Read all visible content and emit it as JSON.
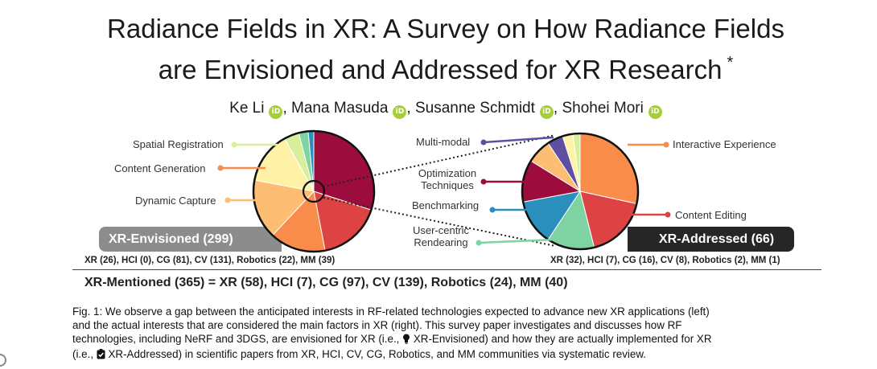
{
  "title": {
    "line1": "Radiance Fields in XR: A Survey on How Radiance Fields",
    "line2": "are Envisioned and Addressed for XR Research",
    "mark": "*"
  },
  "authors": [
    {
      "name": "Ke Li",
      "sep": ", "
    },
    {
      "name": "Mana Masuda",
      "sep": ", "
    },
    {
      "name": "Susanne Schmidt",
      "sep": ", "
    },
    {
      "name": "Shohei Mori",
      "sep": ""
    }
  ],
  "orcid_glyph": "iD",
  "figure": {
    "left_labels": {
      "spatial_registration": "Spatial Registration",
      "content_generation": "Content Generation",
      "dynamic_capture": "Dynamic Capture"
    },
    "center_labels": {
      "multi_modal": "Multi-modal",
      "optimization_1": "Optimization",
      "optimization_2": "Techniques",
      "benchmarking": "Benchmarking",
      "user_centric_1": "User-centric",
      "user_centric_2": "Rendearing"
    },
    "right_labels": {
      "interactive_experience": "Interactive Experience",
      "content_editing": "Content Editing"
    },
    "envisioned_banner": "XR-Envisioned (299)",
    "addressed_banner": "XR-Addressed (66)",
    "envisioned_stats": "XR (26), HCI (0), CG (81), CV (131), Robotics (22), MM (39)",
    "addressed_stats": "XR (32), HCI (7), CG (16), CV (8), Robotics (2), MM (1)",
    "colors": {
      "crimson": "#9c0c3c",
      "red": "#de4343",
      "orange": "#f98b4b",
      "light_orange": "#fdbd72",
      "pale_yellow": "#fff2a6",
      "light_green": "#d7ef9a",
      "green": "#7fd2a2",
      "teal": "#2b8fbe",
      "purple": "#5e4fa2",
      "grey_banner": "#8c8c8c",
      "dark_banner": "#262626"
    },
    "left_pie_slices": [
      {
        "color": "#9c0c3c",
        "value": 0.3
      },
      {
        "color": "#de4343",
        "value": 0.17
      },
      {
        "color": "#f98b4b",
        "value": 0.15
      },
      {
        "color": "#fdbd72",
        "value": 0.16
      },
      {
        "color": "#fff2a6",
        "value": 0.14
      },
      {
        "color": "#d7ef9a",
        "value": 0.04
      },
      {
        "color": "#7fd2a2",
        "value": 0.025
      },
      {
        "color": "#2b8fbe",
        "value": 0.015
      }
    ],
    "right_pie_slices": [
      {
        "color": "#f98b4b",
        "value": 0.29
      },
      {
        "color": "#de4343",
        "value": 0.18
      },
      {
        "color": "#7fd2a2",
        "value": 0.135
      },
      {
        "color": "#2b8fbe",
        "value": 0.13
      },
      {
        "color": "#9c0c3c",
        "value": 0.12
      },
      {
        "color": "#fdbd72",
        "value": 0.07
      },
      {
        "color": "#5e4fa2",
        "value": 0.045
      },
      {
        "color": "#fff2a6",
        "value": 0.03
      },
      {
        "color": "#d7ef9a",
        "value": 0.02
      }
    ]
  },
  "mentioned": "XR-Mentioned (365) = XR (58), HCI (7), CG (97), CV (139), Robotics (24), MM (40)",
  "caption": {
    "l1": "Fig. 1: We observe a gap between the anticipated interests in RF-related technologies expected to advance new XR applications (left)",
    "l2": "and the actual interests that are considered the main factors in XR (right).  This survey paper investigates and discusses how RF",
    "l3a": "technologies, including NeRF and 3DGS, are envisioned for XR (i.e., ",
    "l3b": " XR-Envisioned) and how they are actually implemented for XR",
    "l4a": "(i.e., ",
    "l4b": " XR-Addressed) in scientific papers from XR, HCI, CV, CG, Robotics, and MM communities via systematic review."
  }
}
